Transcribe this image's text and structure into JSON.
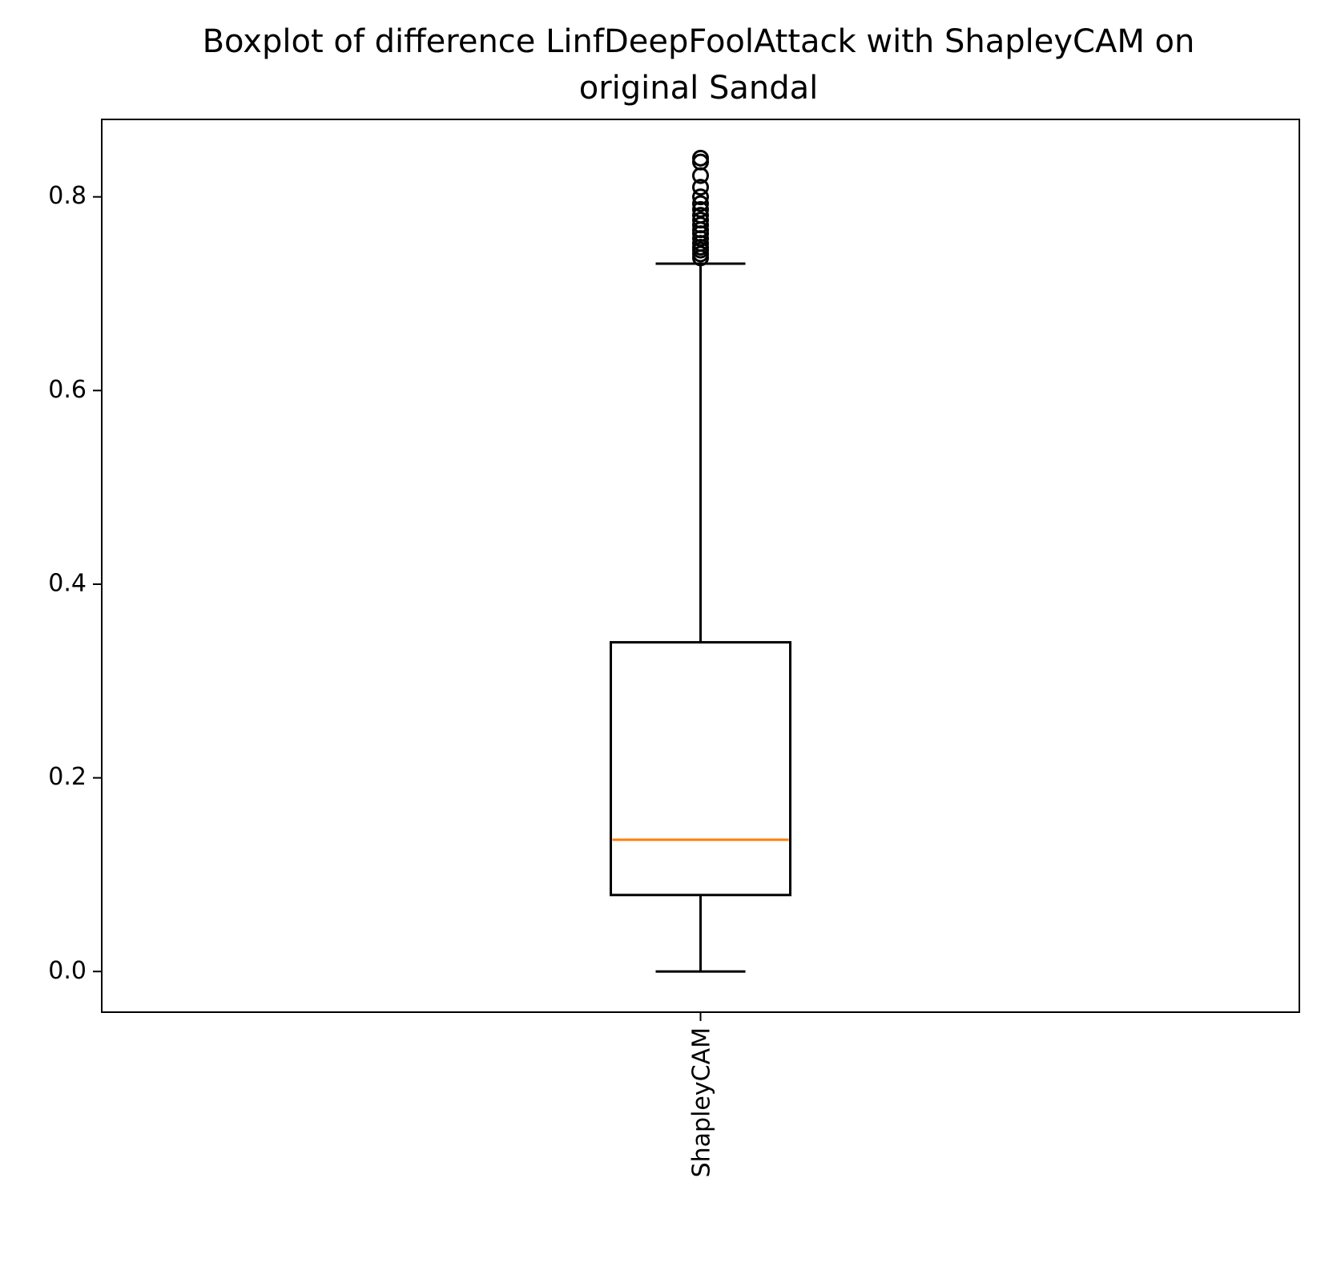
{
  "chart_data": {
    "type": "box",
    "title": "Boxplot of difference LinfDeepFoolAttack with ShapleyCAM on original Sandal",
    "title_lines": [
      "Boxplot of difference LinfDeepFoolAttack with ShapleyCAM on",
      "original Sandal"
    ],
    "xlabel": "",
    "ylabel": "",
    "categories": [
      "ShapleyCAM"
    ],
    "category_label_rotation": "vertical",
    "ylim": [
      -0.042,
      0.88
    ],
    "yticks": [
      0.0,
      0.2,
      0.4,
      0.6,
      0.8
    ],
    "ytick_labels": [
      "0.0",
      "0.2",
      "0.4",
      "0.6",
      "0.8"
    ],
    "grid": false,
    "legend": "none",
    "boxes": [
      {
        "category": "ShapleyCAM",
        "whisker_low": 0.0,
        "q1": 0.079,
        "median": 0.136,
        "q3": 0.34,
        "whisker_high": 0.731,
        "outliers": [
          0.737,
          0.741,
          0.745,
          0.748,
          0.752,
          0.757,
          0.762,
          0.766,
          0.771,
          0.776,
          0.781,
          0.787,
          0.793,
          0.8,
          0.81,
          0.822,
          0.836,
          0.84
        ]
      }
    ],
    "colors": {
      "box": "#000000",
      "median": "#ff7f0e",
      "outlier_edge": "#000000"
    }
  }
}
